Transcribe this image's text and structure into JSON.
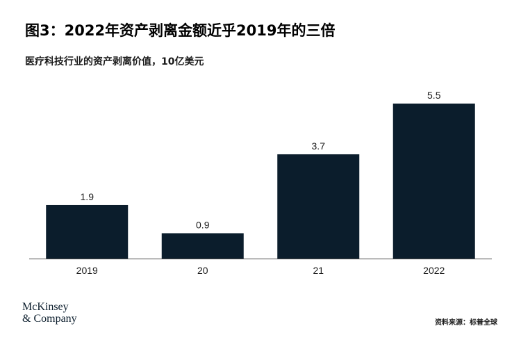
{
  "title": "图3：2022年资产剥离金额近乎2019年的三倍",
  "subtitle": "医疗科技行业的资产剥离价值，10亿美元",
  "logo": {
    "line1": "McKinsey",
    "line2": "& Company"
  },
  "source": "资料来源：标普全球",
  "colors": {
    "bar": "#0b1d2c",
    "axis": "#4a4a4a"
  },
  "chart_data": {
    "type": "bar",
    "categories": [
      "2019",
      "20",
      "21",
      "2022"
    ],
    "values": [
      1.9,
      0.9,
      3.7,
      5.5
    ],
    "data_labels": [
      "1.9",
      "0.9",
      "3.7",
      "5.5"
    ],
    "title": "图3：2022年资产剥离金额近乎2019年的三倍",
    "subtitle": "医疗科技行业的资产剥离价值，10亿美元",
    "ylim": [
      0,
      5.5
    ],
    "grid": false,
    "legend": "none"
  }
}
